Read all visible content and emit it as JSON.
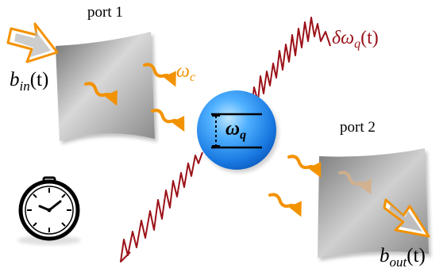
{
  "labels": {
    "port1": "port 1",
    "port2": "port 2",
    "b_in": {
      "base": "b",
      "sub": "in",
      "arg": "(t)"
    },
    "b_out": {
      "base": "b",
      "sub": "out",
      "arg": "(t)"
    },
    "omega_c": {
      "base": "ω",
      "sub": "c"
    },
    "omega_q": {
      "base": "ω",
      "sub": "q"
    },
    "delta_omega_q": {
      "base": "δω",
      "sub": "q",
      "arg": "(t)"
    }
  },
  "colors": {
    "photon": "#f39200",
    "noise": "#9b1118",
    "qubit": "#1e8ff0",
    "mirror": "#9a9a9a"
  },
  "icons": [
    "stopwatch-icon"
  ]
}
